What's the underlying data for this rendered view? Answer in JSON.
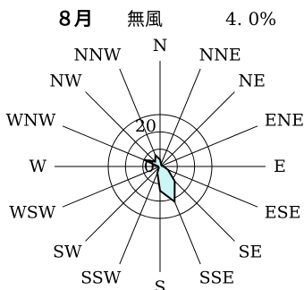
{
  "header": {
    "month": "８月",
    "calm_label": "無風",
    "calm_value": "4. 0%"
  },
  "chart_data": {
    "type": "radar",
    "directions": [
      "N",
      "NNE",
      "NE",
      "ENE",
      "E",
      "ESE",
      "SE",
      "SSE",
      "S",
      "SSW",
      "SW",
      "WSW",
      "W",
      "WNW",
      "NW",
      "NNW"
    ],
    "values": [
      4,
      1.5,
      1,
      1,
      2,
      5,
      12,
      22,
      14,
      4,
      1,
      1,
      1,
      10,
      4,
      7
    ],
    "ring_values": [
      10,
      20,
      30
    ],
    "rmax": 30,
    "tick_labels": [
      {
        "text": "20",
        "value": 20
      },
      {
        "text": "0",
        "value": 0
      }
    ],
    "fill_color": "#ccf5f5",
    "line_color": "#000000"
  }
}
